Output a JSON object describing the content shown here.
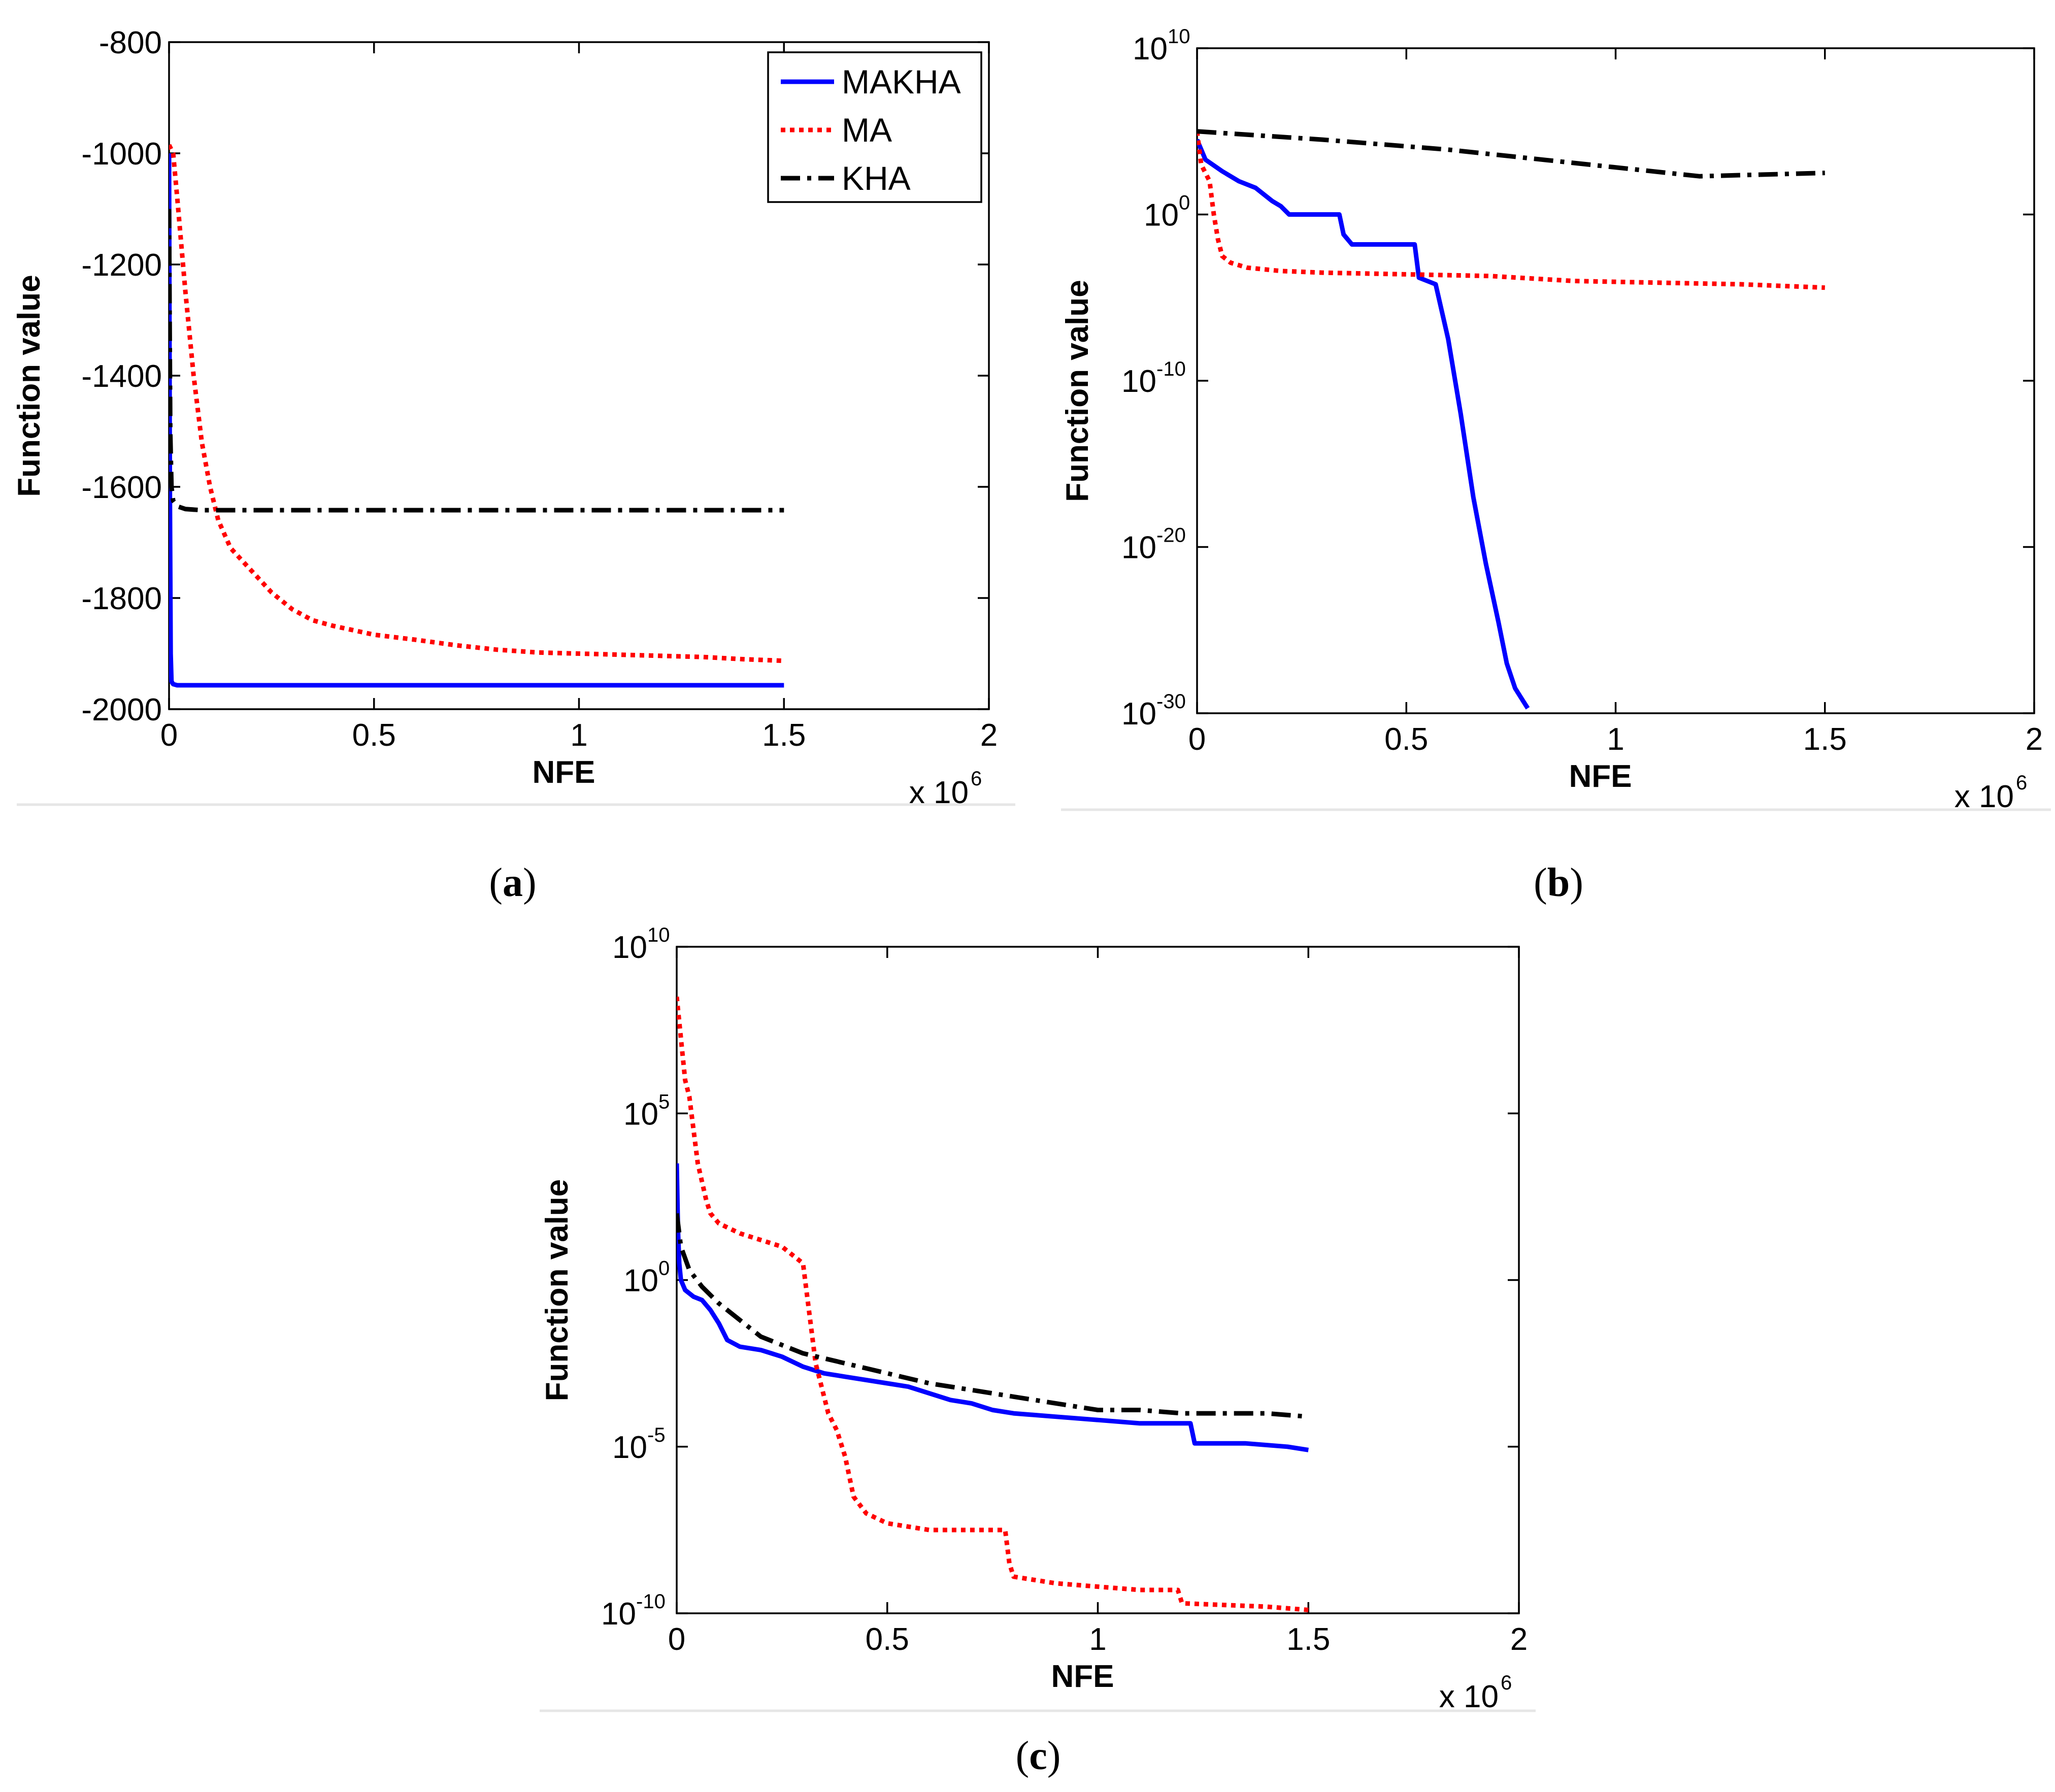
{
  "chart_data": [
    {
      "panel": "a",
      "type": "line",
      "panel_label": "a",
      "xlabel": "NFE",
      "ylabel": "Function value",
      "x_multiplier": "x 10",
      "x_multiplier_exp": "6",
      "xlim": [
        0,
        2
      ],
      "ylim": [
        -2000,
        -800
      ],
      "yscale": "linear",
      "x_ticks": [
        "0",
        "0.5",
        "1",
        "1.5",
        "2"
      ],
      "y_ticks": [
        "-800",
        "-1000",
        "-1200",
        "-1400",
        "-1600",
        "-1800",
        "-2000"
      ],
      "legend": {
        "position": "top-right",
        "entries": [
          "MAKHA",
          "MA",
          "KHA"
        ]
      },
      "series": [
        {
          "name": "MAKHA",
          "color": "#0000ff",
          "style": "solid",
          "x": [
            0,
            0.002,
            0.004,
            0.006,
            0.01,
            0.02,
            0.05,
            1.5
          ],
          "y": [
            -1000,
            -1600,
            -1900,
            -1950,
            -1955,
            -1957,
            -1957,
            -1957
          ]
        },
        {
          "name": "MA",
          "color": "#ff0000",
          "style": "dotted",
          "x": [
            0,
            0.01,
            0.02,
            0.04,
            0.06,
            0.08,
            0.1,
            0.12,
            0.15,
            0.2,
            0.25,
            0.3,
            0.35,
            0.4,
            0.5,
            0.6,
            0.7,
            0.8,
            0.9,
            1.0,
            1.1,
            1.2,
            1.3,
            1.4,
            1.5
          ],
          "y": [
            -985,
            -1000,
            -1080,
            -1250,
            -1400,
            -1520,
            -1600,
            -1660,
            -1710,
            -1750,
            -1790,
            -1820,
            -1840,
            -1850,
            -1866,
            -1875,
            -1885,
            -1893,
            -1898,
            -1900,
            -1902,
            -1904,
            -1906,
            -1910,
            -1913
          ]
        },
        {
          "name": "KHA",
          "color": "#000000",
          "style": "dashdot",
          "x": [
            0,
            0.003,
            0.006,
            0.01,
            0.02,
            0.04,
            0.08,
            1.5
          ],
          "y": [
            -1100,
            -1500,
            -1600,
            -1625,
            -1635,
            -1640,
            -1642,
            -1642
          ]
        }
      ]
    },
    {
      "panel": "b",
      "type": "line",
      "panel_label": "b",
      "xlabel": "NFE",
      "ylabel": "Function value",
      "x_multiplier": "x 10",
      "x_multiplier_exp": "6",
      "xlim": [
        0,
        2
      ],
      "ylim_exp": [
        -30,
        10
      ],
      "yscale": "log",
      "x_ticks": [
        "0",
        "0.5",
        "1",
        "1.5",
        "2"
      ],
      "y_ticks": [
        {
          "base": "10",
          "exp": "10"
        },
        {
          "base": "10",
          "exp": ""
        },
        {
          "base": "10",
          "exp": "-10"
        },
        {
          "base": "10",
          "exp": "-20"
        },
        {
          "base": "10",
          "exp": "-30"
        }
      ],
      "y_tick_first_plain": "10",
      "y_tick_zero_label": "10",
      "y_tick_zero_exp": "0",
      "series": [
        {
          "name": "MAKHA",
          "color": "#0000ff",
          "style": "solid",
          "x": [
            0,
            0.02,
            0.06,
            0.1,
            0.14,
            0.18,
            0.2,
            0.22,
            0.34,
            0.35,
            0.37,
            0.4,
            0.52,
            0.53,
            0.57,
            0.6,
            0.63,
            0.66,
            0.69,
            0.72,
            0.74,
            0.76,
            0.78,
            0.79
          ],
          "y_exp": [
            4.5,
            3.3,
            2.6,
            2.0,
            1.6,
            0.8,
            0.5,
            0.0,
            0.0,
            -1.2,
            -1.8,
            -1.8,
            -1.8,
            -3.8,
            -4.2,
            -7.5,
            -12,
            -17,
            -21,
            -24.5,
            -27,
            -28.5,
            -29.3,
            -29.7
          ]
        },
        {
          "name": "MA",
          "color": "#ff0000",
          "style": "dotted",
          "x": [
            0,
            0.01,
            0.03,
            0.04,
            0.05,
            0.06,
            0.08,
            0.12,
            0.2,
            0.3,
            0.5,
            0.7,
            0.9,
            1.1,
            1.3,
            1.5
          ],
          "y_exp": [
            5,
            3.0,
            2.0,
            0.0,
            -1.5,
            -2.5,
            -2.9,
            -3.2,
            -3.4,
            -3.5,
            -3.6,
            -3.7,
            -4.0,
            -4.1,
            -4.2,
            -4.4
          ]
        },
        {
          "name": "KHA",
          "color": "#000000",
          "style": "dashdot",
          "x": [
            0,
            0.3,
            0.6,
            0.9,
            1.2,
            1.5
          ],
          "y_exp": [
            5.0,
            4.5,
            3.9,
            3.1,
            2.3,
            2.5
          ]
        }
      ]
    },
    {
      "panel": "c",
      "type": "line",
      "panel_label": "c",
      "xlabel": "NFE",
      "ylabel": "Function value",
      "x_multiplier": "x 10",
      "x_multiplier_exp": "6",
      "xlim": [
        0,
        2
      ],
      "ylim_exp": [
        -10,
        10
      ],
      "yscale": "log",
      "x_ticks": [
        "0",
        "0.5",
        "1",
        "1.5",
        "2"
      ],
      "y_ticks": [
        {
          "base": "10",
          "exp": "10"
        },
        {
          "base": "10",
          "exp": "5"
        },
        {
          "base": "10",
          "exp": "0"
        },
        {
          "base": "10",
          "exp": "-5"
        },
        {
          "base": "10",
          "exp": "-10"
        }
      ],
      "series": [
        {
          "name": "MAKHA",
          "color": "#0000ff",
          "style": "solid",
          "x": [
            0,
            0.003,
            0.006,
            0.01,
            0.02,
            0.04,
            0.06,
            0.08,
            0.1,
            0.12,
            0.15,
            0.2,
            0.25,
            0.3,
            0.35,
            0.4,
            0.5,
            0.55,
            0.6,
            0.65,
            0.7,
            0.75,
            0.8,
            0.9,
            1.0,
            1.1,
            1.22,
            1.23,
            1.35,
            1.45,
            1.5
          ],
          "y_exp": [
            3.5,
            1.5,
            0.5,
            0.0,
            -0.3,
            -0.5,
            -0.6,
            -0.9,
            -1.3,
            -1.8,
            -2.0,
            -2.1,
            -2.3,
            -2.6,
            -2.8,
            -2.9,
            -3.1,
            -3.2,
            -3.4,
            -3.6,
            -3.7,
            -3.9,
            -4.0,
            -4.1,
            -4.2,
            -4.3,
            -4.3,
            -4.9,
            -4.9,
            -5.0,
            -5.1
          ]
        },
        {
          "name": "MA",
          "color": "#ff0000",
          "style": "dotted",
          "x": [
            0,
            0.02,
            0.03,
            0.05,
            0.07,
            0.08,
            0.1,
            0.15,
            0.25,
            0.3,
            0.32,
            0.33,
            0.36,
            0.38,
            0.4,
            0.42,
            0.45,
            0.5,
            0.6,
            0.78,
            0.79,
            0.8,
            0.9,
            1.0,
            1.1,
            1.19,
            1.2,
            1.3,
            1.4,
            1.5
          ],
          "y_exp": [
            8.5,
            6.0,
            5.5,
            3.5,
            2.4,
            2.0,
            1.7,
            1.4,
            1.0,
            0.5,
            -1.5,
            -2.5,
            -4.0,
            -4.5,
            -5.3,
            -6.5,
            -7.0,
            -7.3,
            -7.5,
            -7.5,
            -8.5,
            -8.9,
            -9.1,
            -9.2,
            -9.3,
            -9.3,
            -9.7,
            -9.75,
            -9.8,
            -9.9
          ]
        },
        {
          "name": "KHA",
          "color": "#000000",
          "style": "dashdot",
          "x": [
            0,
            0.01,
            0.03,
            0.06,
            0.1,
            0.15,
            0.2,
            0.3,
            0.4,
            0.5,
            0.6,
            0.7,
            0.8,
            0.9,
            1.0,
            1.1,
            1.2,
            1.3,
            1.4,
            1.5
          ],
          "y_exp": [
            2.0,
            1.0,
            0.3,
            -0.2,
            -0.7,
            -1.2,
            -1.7,
            -2.2,
            -2.5,
            -2.8,
            -3.1,
            -3.3,
            -3.5,
            -3.7,
            -3.9,
            -3.9,
            -4.0,
            -4.0,
            -4.0,
            -4.1
          ]
        }
      ]
    }
  ]
}
